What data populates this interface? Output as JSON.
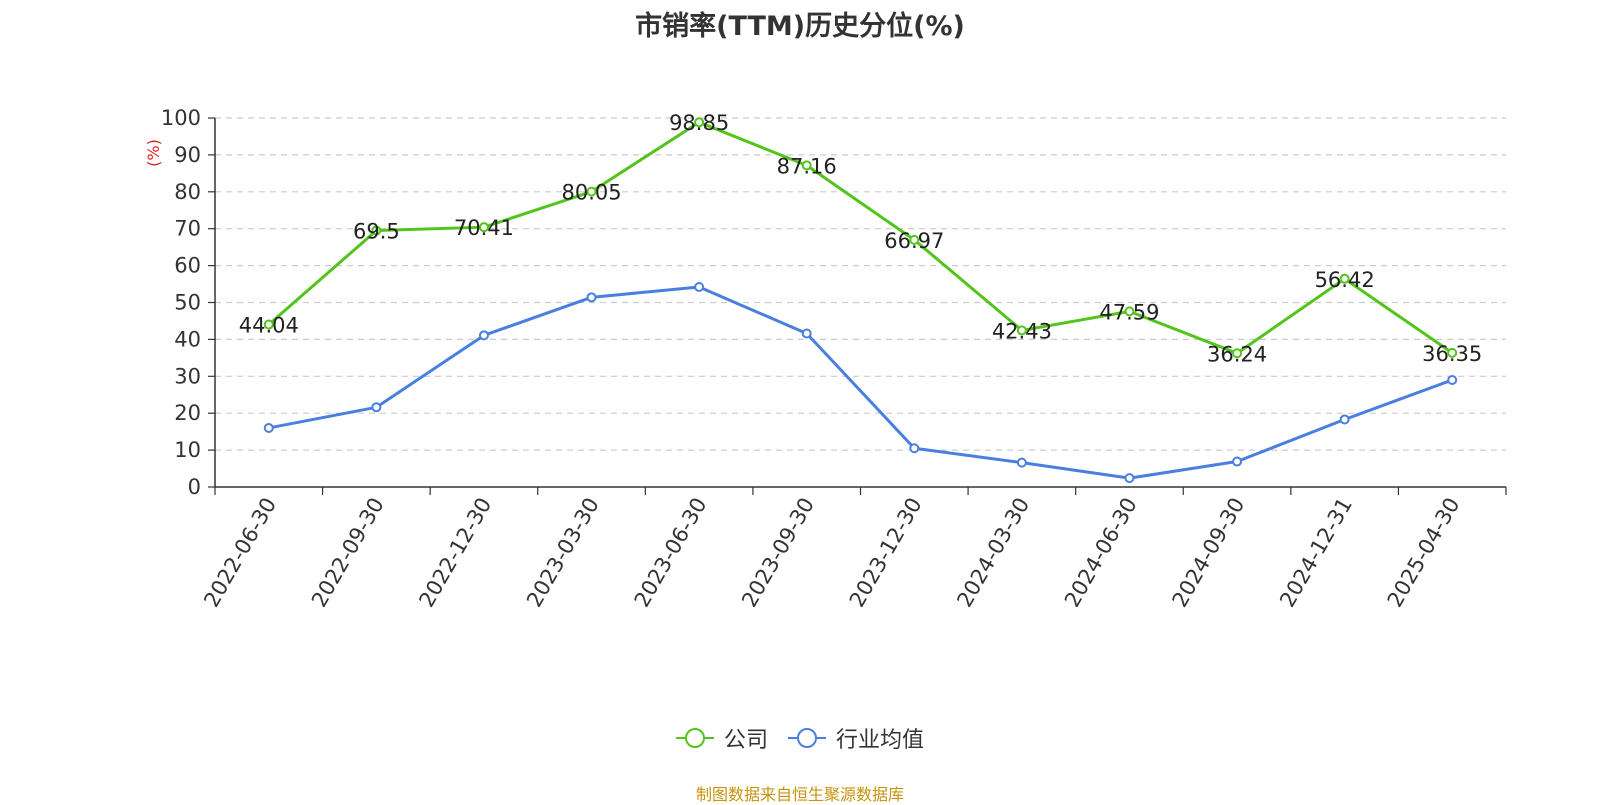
{
  "title": "市销率(TTM)历史分位(%)",
  "source": "制图数据来自恒生聚源数据库",
  "chart_data": {
    "type": "line",
    "title": "市销率(TTM)历史分位(%)",
    "ylabel": "(%)",
    "xlabel": "",
    "ylim": [
      0,
      100
    ],
    "yticks": [
      0,
      10,
      20,
      30,
      40,
      50,
      60,
      70,
      80,
      90,
      100
    ],
    "grid": "horizontal dashed",
    "legend_position": "bottom",
    "categories": [
      "2022-06-30",
      "2022-09-30",
      "2022-12-30",
      "2023-03-30",
      "2023-06-30",
      "2023-09-30",
      "2023-12-30",
      "2024-03-30",
      "2024-06-30",
      "2024-09-30",
      "2024-12-31",
      "2025-04-30"
    ],
    "series": [
      {
        "name": "公司",
        "color": "#52c41a",
        "values": [
          44.04,
          69.5,
          70.41,
          80.05,
          98.85,
          87.16,
          66.97,
          42.43,
          47.59,
          36.24,
          56.42,
          36.35
        ],
        "labels": [
          "44.04",
          "69.5",
          "70.41",
          "80.05",
          "98.85",
          "87.16",
          "66.97",
          "42.43",
          "47.59",
          "36.24",
          "56.42",
          "36.35"
        ]
      },
      {
        "name": "行业均值",
        "color": "#4a7fe0",
        "values": [
          16.0,
          21.6,
          41.1,
          51.4,
          54.2,
          41.6,
          10.5,
          6.6,
          2.4,
          6.9,
          18.3,
          29.0
        ]
      }
    ]
  }
}
